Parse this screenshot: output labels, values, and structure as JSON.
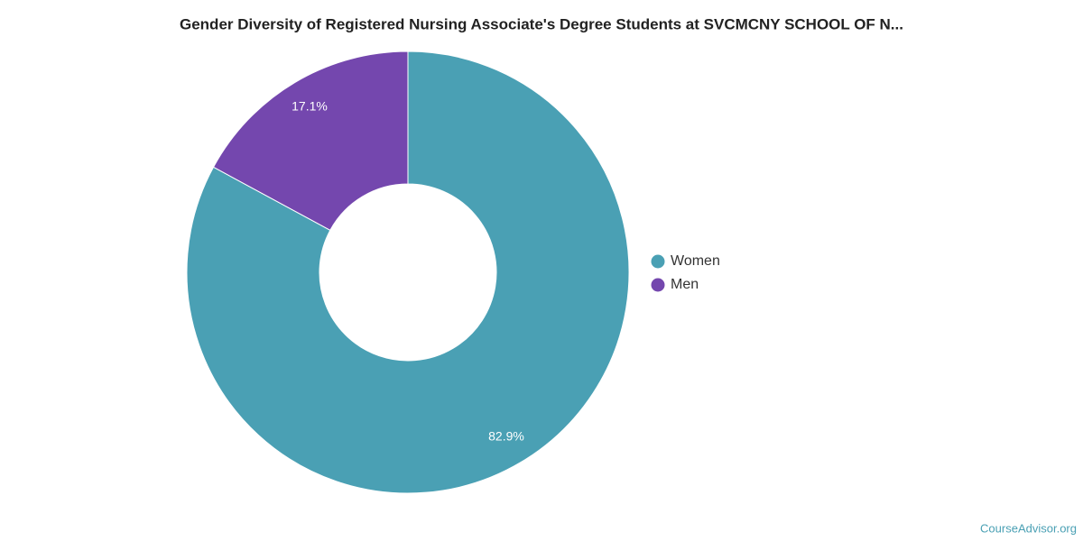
{
  "chart_data": {
    "type": "donut",
    "title": "Gender Diversity of Registered Nursing Associate's Degree Students at SVCMCNY SCHOOL OF N...",
    "categories": [
      "Women",
      "Men"
    ],
    "values": [
      82.9,
      17.1
    ],
    "value_labels": [
      "82.9%",
      "17.1%"
    ],
    "colors": [
      "#4aa0b4",
      "#7447ae"
    ],
    "legend": "right",
    "credit": "CourseAdvisor.org"
  }
}
